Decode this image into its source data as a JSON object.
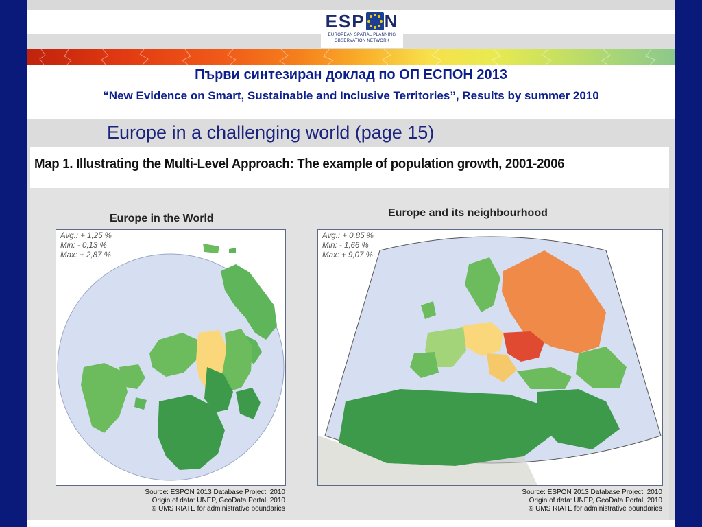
{
  "header": {
    "logo_text_left": "ESP",
    "logo_text_right": "N",
    "logo_subtitle_line1": "EUROPEAN SPATIAL PLANNING",
    "logo_subtitle_line2": "OBSERVATION NETWORK"
  },
  "titles": {
    "line1": "Първи синтезиран доклад по ОП ЕСПОН 2013",
    "line2": "“New Evidence on Smart, Sustainable and Inclusive Territories”, Results by summer 2010"
  },
  "section": {
    "heading": "Europe in a challenging world (page 15)"
  },
  "figure": {
    "title": "Map 1. Illustrating the Multi-Level Approach: The example of population growth, 2001-2006",
    "world_map": {
      "label": "Europe in the World",
      "avg": "Avg.: + 1,25 %",
      "min": "Min: - 0,13 %",
      "max": "Max: + 2,87 %",
      "source_line1": "Source: ESPON 2013 Database Project, 2010",
      "source_line2": "Origin of data: UNEP, GeoData Portal, 2010",
      "source_line3": "© UMS RIATE for administrative boundaries"
    },
    "neighbourhood_map": {
      "label": "Europe and its neighbourhood",
      "avg": "Avg.: + 0,85 %",
      "min": "Min: - 1,66 %",
      "max": "Max: + 9,07 %",
      "source_line1": "Source: ESPON 2013 Database Project, 2010",
      "source_line2": "Origin of data: UNEP, GeoData Portal, 2010",
      "source_line3": "© UMS RIATE for administrative boundaries"
    }
  },
  "colors": {
    "frame": "#0a1a7a",
    "title_blue": "#0d1f8c",
    "ocean": "#d6def2",
    "high_growth": "#3d9a4a",
    "mid_growth": "#6cbb5c",
    "low_growth": "#f9d77a",
    "decline": "#f08a48",
    "strong_decline": "#e04a30"
  }
}
